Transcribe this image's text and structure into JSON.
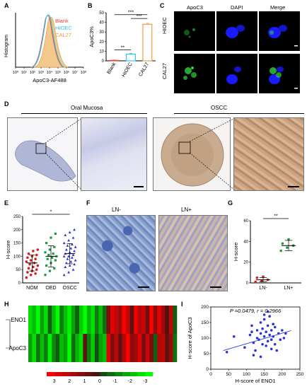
{
  "panels": [
    "A",
    "B",
    "C",
    "D",
    "E",
    "F",
    "G",
    "H",
    "I"
  ],
  "colors": {
    "blank": "#e8453c",
    "hioec": "#2ec8e8",
    "cal27": "#f0a040",
    "green": "#1e9b3a",
    "blue": "#2b33d8",
    "red": "#d42020",
    "heat_pos": "#e01010",
    "heat_neg": "#22d822",
    "dapi": "#1a1aff",
    "apoc3_green": "#2fcf3f",
    "ihc_bg": "#f4f4f4",
    "ihc_stain": "#b6896a"
  },
  "panelA": {
    "ylabel": "Histogram",
    "xlabel": "ApoC3-AF488",
    "xticks": [
      "10⁰",
      "10¹",
      "10²",
      "10³",
      "10⁴",
      "10⁵",
      "10⁶",
      "10⁷",
      "10⁸"
    ],
    "legend": [
      {
        "label": "Blank"
      },
      {
        "label": "HIOEC"
      },
      {
        "label": "CAL27"
      }
    ]
  },
  "panelC": {
    "cols": [
      "ApoC3",
      "DAPI",
      "Merge"
    ],
    "rows": [
      "HIOEC",
      "CAL27"
    ]
  },
  "panelD": {
    "left_title": "Oral Mucosa",
    "right_title": "OSCC"
  },
  "panelF": {
    "cols": [
      "LN-",
      "LN+"
    ]
  },
  "panelI": {
    "pvalue": "P =0.0479, r = 0.2966"
  },
  "chart_data": [
    {
      "id": "B",
      "type": "bar",
      "categories": [
        "Blank",
        "HIOEC",
        "CAL27"
      ],
      "values": [
        0.5,
        7,
        38
      ],
      "errors": [
        0.3,
        0.8,
        1.0
      ],
      "ylabel": "ApoC3%",
      "ylim": [
        0,
        50
      ],
      "yticks": [
        0,
        10,
        20,
        30,
        40,
        50
      ],
      "significance": [
        {
          "from": "Blank",
          "to": "HIOEC",
          "label": "**"
        },
        {
          "from": "Blank",
          "to": "CAL27",
          "label": "***"
        },
        {
          "from": "HIOEC",
          "to": "CAL27",
          "label": "***"
        }
      ]
    },
    {
      "id": "E",
      "type": "scatter",
      "categories": [
        "NOM",
        "OED",
        "OSCC"
      ],
      "ylabel": "H-score",
      "ylim": [
        0,
        250
      ],
      "yticks": [
        0,
        50,
        100,
        150,
        200,
        250
      ],
      "series": [
        {
          "name": "NOM",
          "mean": 75,
          "sd": 30,
          "values": [
            20,
            30,
            35,
            40,
            45,
            50,
            55,
            60,
            65,
            70,
            75,
            80,
            85,
            90,
            95,
            100,
            105,
            110,
            120,
            125
          ]
        },
        {
          "name": "OED",
          "mean": 100,
          "sd": 40,
          "values": [
            30,
            45,
            55,
            65,
            75,
            85,
            90,
            95,
            100,
            105,
            110,
            115,
            125,
            135,
            150,
            170,
            185
          ]
        },
        {
          "name": "OSCC",
          "mean": 110,
          "sd": 38,
          "values": [
            30,
            40,
            50,
            60,
            65,
            70,
            75,
            80,
            85,
            90,
            95,
            100,
            100,
            105,
            110,
            115,
            120,
            125,
            130,
            135,
            140,
            145,
            150,
            160,
            170,
            180,
            190,
            200
          ]
        }
      ],
      "significance": [
        {
          "from": "NOM",
          "to": "OSCC",
          "label": "*"
        }
      ]
    },
    {
      "id": "G",
      "type": "scatter",
      "categories": [
        "LN-",
        "LN+"
      ],
      "ylabel": "H-score",
      "ylim": [
        0,
        60
      ],
      "yticks": [
        0,
        20,
        40,
        60
      ],
      "series": [
        {
          "name": "LN-",
          "mean": 3,
          "sd": 2,
          "values": [
            1,
            2,
            3,
            5,
            6
          ]
        },
        {
          "name": "LN+",
          "mean": 36,
          "sd": 5,
          "values": [
            31,
            34,
            36,
            38,
            42
          ]
        }
      ],
      "significance": [
        {
          "from": "LN-",
          "to": "LN+",
          "label": "**"
        }
      ]
    },
    {
      "id": "H",
      "type": "heatmap",
      "rows": [
        "ENO1",
        "ApoC3"
      ],
      "scale_labels": [
        "3",
        "2",
        "1",
        "0",
        "-1",
        "-2",
        "-3"
      ],
      "values": [
        [
          -2.5,
          -2,
          -3,
          -1.5,
          -2.5,
          -0.5,
          -2,
          -3,
          -1,
          -2,
          -2.8,
          -1.5,
          -0.5,
          -2.2,
          -3,
          -1.8,
          -2.5,
          -1,
          -2,
          -0.8,
          1,
          2.5,
          2,
          1.5,
          3,
          2,
          0.5,
          2.8,
          1.8,
          2.2,
          0.8,
          3,
          1.2,
          2.5,
          1.5,
          0.3,
          2,
          -0.5
        ],
        [
          -1.5,
          -2.5,
          -0.8,
          -2,
          -1,
          -2.8,
          -1.2,
          -0.5,
          -2,
          -1.5,
          -3,
          -0.7,
          -1.8,
          -2.5,
          0.5,
          -1,
          -2.2,
          -0.3,
          -1.5,
          -2,
          2.5,
          1,
          2,
          0.5,
          1.8,
          3,
          1.2,
          1.5,
          2.5,
          0.8,
          2.2,
          1,
          -0.5,
          1.8,
          2,
          0.5,
          1.5,
          -0.8
        ]
      ]
    },
    {
      "id": "I",
      "type": "scatter",
      "xlabel": "H-score of ENO1",
      "ylabel": "H-score of ApoC3",
      "xlim": [
        0,
        250
      ],
      "ylim": [
        0,
        200
      ],
      "xticks": [
        0,
        50,
        100,
        150,
        200,
        250
      ],
      "yticks": [
        0,
        50,
        100,
        150,
        200
      ],
      "x": [
        45,
        65,
        95,
        110,
        115,
        120,
        125,
        130,
        130,
        135,
        140,
        140,
        145,
        145,
        150,
        150,
        155,
        155,
        160,
        160,
        165,
        165,
        170,
        170,
        175,
        175,
        180,
        180,
        185,
        190,
        195,
        200,
        205,
        210,
        120,
        140,
        160,
        150,
        170,
        115
      ],
      "y": [
        55,
        105,
        70,
        110,
        140,
        85,
        60,
        100,
        125,
        95,
        115,
        150,
        80,
        130,
        105,
        160,
        75,
        120,
        90,
        140,
        110,
        170,
        95,
        125,
        105,
        145,
        80,
        135,
        60,
        115,
        95,
        125,
        100,
        115,
        45,
        40,
        185,
        175,
        65,
        120
      ],
      "fit": {
        "x": [
          35,
          225
        ],
        "y": [
          60,
          124
        ]
      }
    }
  ]
}
